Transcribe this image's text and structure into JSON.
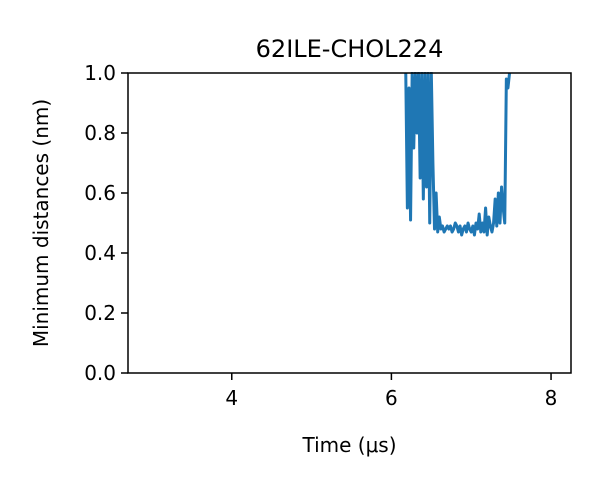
{
  "chart_data": {
    "type": "line",
    "title": "62ILE-CHOL224",
    "xlabel": "Time (μs)",
    "ylabel": "Minimum distances (nm)",
    "xlim": [
      2.7,
      8.25
    ],
    "ylim": [
      0.0,
      1.0
    ],
    "xticks": [
      4,
      6,
      8
    ],
    "xtick_labels": [
      "4",
      "6",
      "8"
    ],
    "yticks": [
      0.0,
      0.2,
      0.4,
      0.6,
      0.8,
      1.0
    ],
    "ytick_labels": [
      "0.0",
      "0.2",
      "0.4",
      "0.6",
      "0.8",
      "1.0"
    ],
    "grid": false,
    "series": [
      {
        "color": "#1f77b4",
        "x": [
          6.18,
          6.2,
          6.22,
          6.24,
          6.26,
          6.28,
          6.3,
          6.32,
          6.34,
          6.36,
          6.38,
          6.4,
          6.42,
          6.44,
          6.46,
          6.48,
          6.5,
          6.52,
          6.54,
          6.56,
          6.58,
          6.6,
          6.62,
          6.64,
          6.66,
          6.68,
          6.7,
          6.72,
          6.74,
          6.76,
          6.78,
          6.8,
          6.82,
          6.84,
          6.86,
          6.88,
          6.9,
          6.92,
          6.94,
          6.96,
          6.98,
          7.0,
          7.02,
          7.04,
          7.06,
          7.08,
          7.1,
          7.12,
          7.14,
          7.16,
          7.18,
          7.2,
          7.22,
          7.24,
          7.26,
          7.28,
          7.3,
          7.32,
          7.34,
          7.36,
          7.38,
          7.4,
          7.42,
          7.44,
          7.46,
          7.48
        ],
        "y": [
          1.0,
          0.55,
          0.95,
          0.51,
          1.0,
          0.75,
          1.0,
          0.8,
          1.0,
          0.65,
          1.0,
          0.58,
          1.0,
          0.62,
          1.0,
          0.5,
          1.0,
          0.7,
          0.48,
          0.6,
          0.47,
          0.52,
          0.48,
          0.49,
          0.47,
          0.48,
          0.49,
          0.48,
          0.49,
          0.47,
          0.48,
          0.5,
          0.49,
          0.47,
          0.49,
          0.46,
          0.48,
          0.49,
          0.47,
          0.5,
          0.48,
          0.47,
          0.49,
          0.46,
          0.5,
          0.48,
          0.53,
          0.47,
          0.5,
          0.47,
          0.55,
          0.46,
          0.52,
          0.49,
          0.47,
          0.5,
          0.58,
          0.49,
          0.6,
          0.5,
          0.62,
          0.55,
          0.5,
          0.98,
          0.95,
          1.0
        ]
      }
    ]
  }
}
